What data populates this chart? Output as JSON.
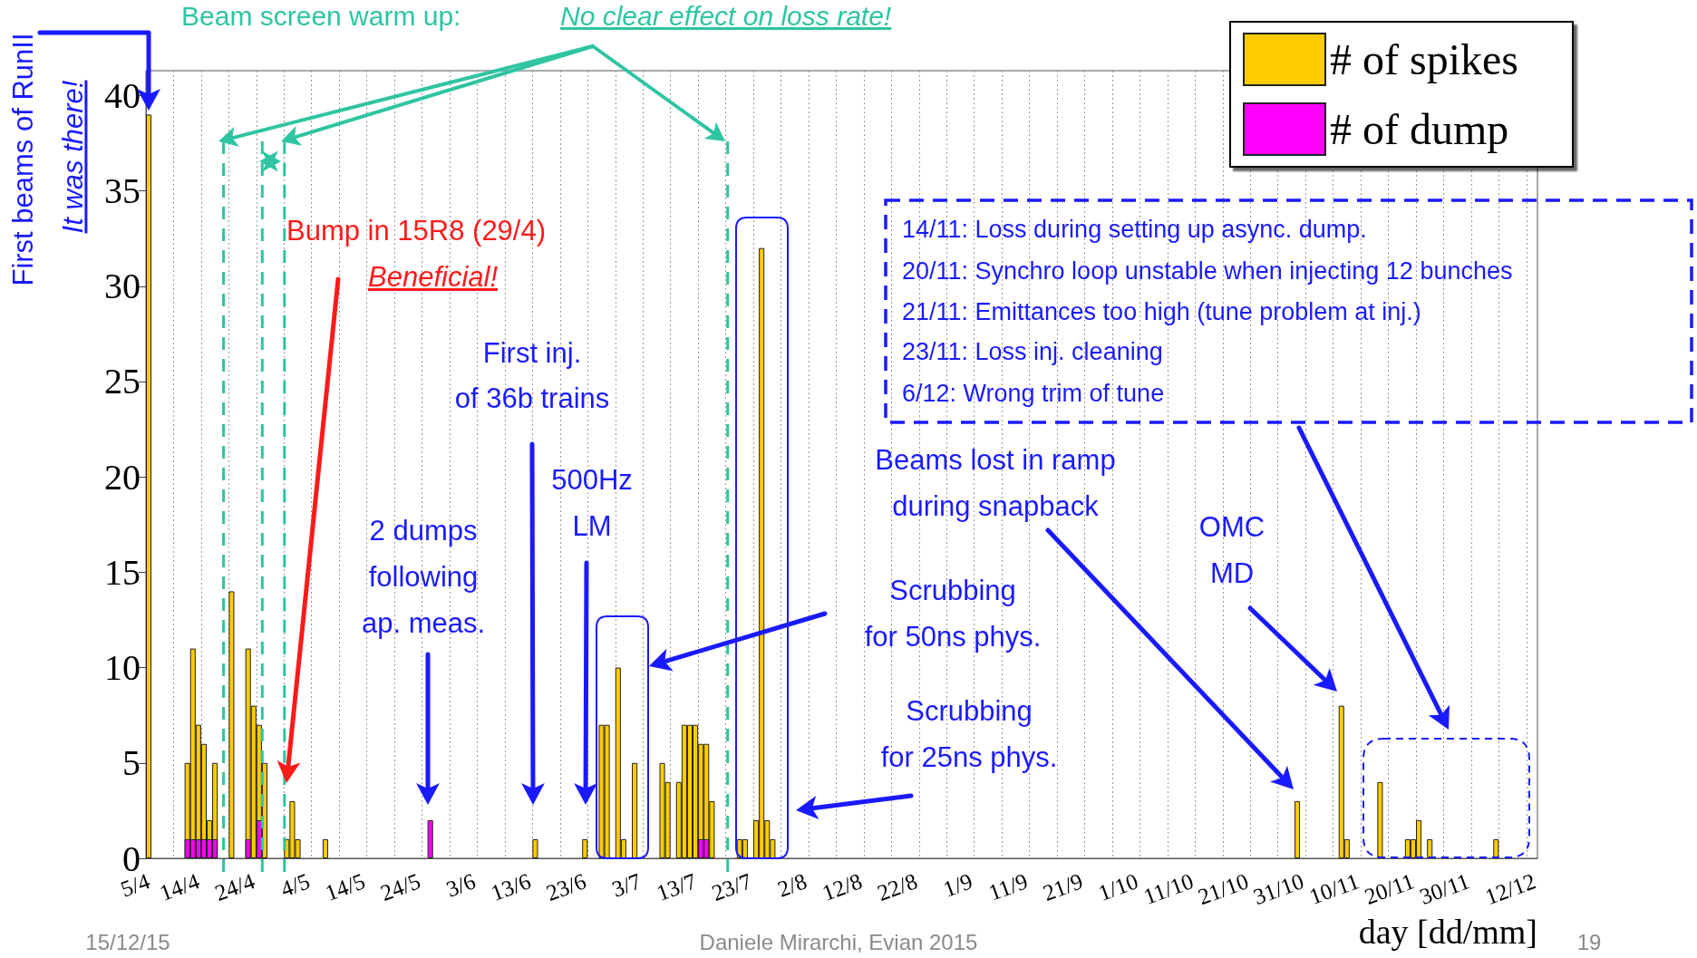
{
  "chart_data": {
    "type": "bar",
    "xlabel": "day [dd/mm]",
    "legend": "top right",
    "grid": "x",
    "categories": [
      "5/4",
      null,
      null,
      null,
      null,
      null,
      null,
      null,
      null,
      "14/4",
      null,
      null,
      null,
      null,
      null,
      null,
      null,
      null,
      null,
      "24/4",
      null,
      null,
      null,
      null,
      null,
      null,
      null,
      null,
      null,
      "4/5",
      null,
      null,
      null,
      null,
      null,
      null,
      null,
      null,
      null,
      "14/5",
      null,
      null,
      null,
      null,
      null,
      null,
      null,
      null,
      null,
      "24/5",
      null,
      null,
      null,
      null,
      null,
      null,
      null,
      null,
      null,
      "3/6",
      null,
      null,
      null,
      null,
      null,
      null,
      null,
      null,
      null,
      "13/6",
      null,
      null,
      null,
      null,
      null,
      null,
      null,
      null,
      null,
      "23/6",
      null,
      null,
      null,
      null,
      null,
      null,
      null,
      null,
      null,
      "3/7",
      null,
      null,
      null,
      null,
      null,
      null,
      null,
      null,
      null,
      "13/7",
      null,
      null,
      null,
      null,
      null,
      null,
      null,
      null,
      null,
      "23/7",
      null,
      null,
      null,
      null,
      null,
      null,
      null,
      null,
      null,
      "2/8",
      null,
      null,
      null,
      null,
      null,
      null,
      null,
      null,
      null,
      "12/8",
      null,
      null,
      null,
      null,
      null,
      null,
      null,
      null,
      null,
      "22/8",
      null,
      null,
      null,
      null,
      null,
      null,
      null,
      null,
      null,
      "1/9",
      null,
      null,
      null,
      null,
      null,
      null,
      null,
      null,
      null,
      "11/9",
      null,
      null,
      null,
      null,
      null,
      null,
      null,
      null,
      null,
      "21/9",
      null,
      null,
      null,
      null,
      null,
      null,
      null,
      null,
      null,
      "1/10",
      null,
      null,
      null,
      null,
      null,
      null,
      null,
      null,
      null,
      "11/10",
      null,
      null,
      null,
      null,
      null,
      null,
      null,
      null,
      null,
      "21/10",
      null,
      null,
      null,
      null,
      null,
      null,
      null,
      null,
      null,
      "31/10",
      null,
      null,
      null,
      null,
      null,
      null,
      null,
      null,
      null,
      "10/11",
      null,
      null,
      null,
      null,
      null,
      null,
      null,
      null,
      null,
      "20/11",
      null,
      null,
      null,
      null,
      null,
      null,
      null,
      null,
      null,
      "30/11",
      null,
      null,
      null,
      null,
      null,
      null,
      null,
      null,
      null,
      null,
      null,
      "12/12"
    ],
    "ylim": [
      0,
      41.3
    ],
    "yticks": [
      0,
      5,
      10,
      15,
      20,
      25,
      30,
      35,
      40
    ],
    "series": [
      {
        "name": "# of spikes",
        "color": "#ffcc00",
        "values": [
          39,
          null,
          null,
          null,
          null,
          null,
          null,
          5,
          11,
          7,
          6,
          2,
          5,
          null,
          null,
          14,
          null,
          null,
          11,
          8,
          7,
          5,
          null,
          null,
          null,
          1,
          3,
          1,
          null,
          null,
          null,
          null,
          1,
          null,
          null,
          null,
          null,
          null,
          null,
          null,
          null,
          null,
          null,
          null,
          null,
          null,
          null,
          null,
          null,
          null,
          null,
          null,
          null,
          null,
          null,
          null,
          null,
          null,
          null,
          null,
          null,
          null,
          null,
          null,
          null,
          null,
          null,
          null,
          null,
          null,
          1,
          null,
          null,
          null,
          null,
          null,
          null,
          null,
          null,
          1,
          null,
          null,
          7,
          7,
          null,
          10,
          1,
          null,
          5,
          null,
          null,
          null,
          null,
          5,
          4,
          null,
          4,
          7,
          7,
          7,
          6,
          6,
          3,
          null,
          null,
          null,
          null,
          1,
          1,
          null,
          2,
          32,
          2,
          1,
          null,
          null,
          null,
          null,
          null,
          null,
          null,
          null,
          null,
          null,
          null,
          null,
          null,
          null,
          null,
          null,
          null,
          null,
          null,
          null,
          null,
          null,
          null,
          null,
          null,
          null,
          null,
          null,
          null,
          null,
          null,
          null,
          null,
          null,
          null,
          null,
          null,
          null,
          null,
          null,
          null,
          null,
          null,
          null,
          null,
          null,
          null,
          null,
          null,
          null,
          null,
          null,
          null,
          null,
          null,
          null,
          null,
          null,
          null,
          null,
          null,
          null,
          null,
          null,
          null,
          null,
          null,
          null,
          null,
          null,
          null,
          null,
          null,
          null,
          null,
          null,
          null,
          null,
          null,
          null,
          null,
          null,
          null,
          null,
          null,
          null,
          null,
          null,
          null,
          null,
          null,
          null,
          null,
          null,
          3,
          null,
          null,
          null,
          null,
          null,
          null,
          null,
          8,
          1,
          null,
          null,
          null,
          null,
          null,
          4,
          null,
          null,
          null,
          null,
          1,
          1,
          2,
          null,
          1,
          null,
          null,
          null,
          null,
          null,
          null,
          null,
          null,
          null,
          null,
          null,
          1,
          null,
          null,
          null,
          null,
          null,
          null,
          null
        ]
      },
      {
        "name": "# of dump",
        "color": "#ff00ff",
        "values": [
          null,
          null,
          null,
          null,
          null,
          null,
          null,
          1,
          1,
          1,
          1,
          1,
          1,
          null,
          null,
          null,
          null,
          null,
          1,
          null,
          2,
          null,
          null,
          null,
          null,
          null,
          null,
          null,
          null,
          null,
          null,
          null,
          null,
          null,
          null,
          null,
          null,
          null,
          null,
          null,
          null,
          null,
          null,
          null,
          null,
          null,
          null,
          null,
          null,
          null,
          null,
          2,
          null,
          null,
          null,
          null,
          null,
          null,
          null,
          null,
          null,
          null,
          null,
          null,
          null,
          null,
          null,
          null,
          null,
          null,
          null,
          null,
          null,
          null,
          null,
          null,
          null,
          null,
          null,
          null,
          null,
          null,
          null,
          null,
          null,
          null,
          null,
          null,
          null,
          null,
          null,
          null,
          null,
          null,
          null,
          null,
          null,
          null,
          null,
          null,
          1,
          1,
          null,
          null,
          null,
          null,
          null,
          null,
          null,
          null,
          null,
          null,
          null,
          null,
          null,
          null,
          null,
          null,
          null,
          null,
          null,
          null,
          null,
          null,
          null,
          null,
          null,
          null,
          null,
          null,
          null,
          null,
          null,
          null,
          null,
          null,
          null,
          null,
          null,
          null,
          null,
          null,
          null,
          null,
          null,
          null,
          null,
          null,
          null,
          null,
          null,
          null,
          null,
          null,
          null,
          null,
          null,
          null,
          null,
          null,
          null,
          null,
          null,
          null,
          null,
          null,
          null,
          null,
          null,
          null,
          null,
          null,
          null,
          null,
          null,
          null,
          null,
          null,
          null,
          null,
          null,
          null,
          null,
          null,
          null,
          null,
          null,
          null,
          null,
          null,
          null,
          null,
          null,
          null,
          null,
          null,
          null,
          null,
          null,
          null,
          null,
          null,
          null,
          null,
          null,
          null,
          null,
          null,
          null,
          null,
          null,
          null,
          null,
          null,
          null,
          null,
          null,
          null,
          null,
          null,
          null,
          null,
          null,
          null,
          null,
          null,
          null,
          null,
          null,
          null,
          null,
          null,
          null,
          null,
          null,
          null,
          null,
          null,
          null,
          null,
          null,
          null,
          null,
          null,
          null,
          null,
          null,
          null,
          null,
          null,
          null,
          null
        ]
      }
    ],
    "annotations": [
      "Beam screen warm up:",
      "No clear effect on loss rate!",
      "First beams of RunII",
      "It was there!",
      "Bump in 15R8 (29/4)",
      "Beneficial!",
      "First inj.\nof 36b trains",
      "500Hz\nLM",
      "2 dumps\nfollowing\nap. meas.",
      "Scrubbing\nfor 50ns phys.",
      "Scrubbing\nfor 25ns phys.",
      "Beams lost in ramp\nduring snapback",
      "OMC\nMD",
      "14/11: Loss during setting up async. dump.",
      "20/11: Synchro loop unstable when injecting 12 bunches",
      "21/11: Emittances too high (tune problem at inj.)",
      "23/11: Loss inj. cleaning",
      "6/12: Wrong trim of tune",
      "15/12/15",
      "Daniele Mirarchi, Evian 2015",
      "19"
    ]
  }
}
